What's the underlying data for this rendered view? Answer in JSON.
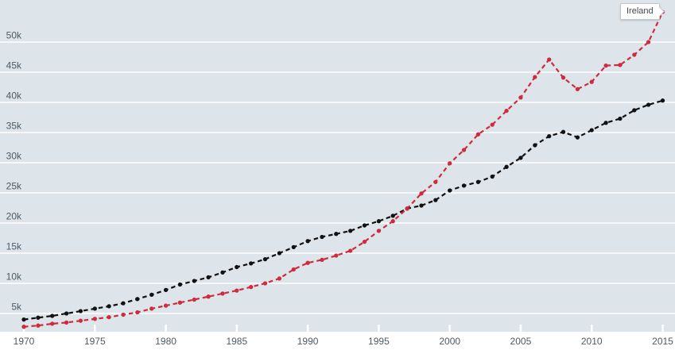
{
  "colors": {
    "page_background": "#ffffff",
    "plot_background": "#dde5eb",
    "gridline": "#ffffff",
    "axis_text": "#4c5a64",
    "series_black": "#111111",
    "series_red": "#ce2b3d",
    "tooltip_border": "#c2c9ce",
    "tooltip_text": "#3c4a53"
  },
  "tooltip": {
    "label": "Ireland"
  },
  "chart_data": {
    "type": "line",
    "title": "",
    "xlabel": "",
    "ylabel": "",
    "grid": true,
    "line_style": "dashed-with-dots",
    "xlim": [
      1968.3,
      2015.9
    ],
    "ylim": [
      2000,
      57000
    ],
    "x": [
      1970,
      1971,
      1972,
      1973,
      1974,
      1975,
      1976,
      1977,
      1978,
      1979,
      1980,
      1981,
      1982,
      1983,
      1984,
      1985,
      1986,
      1987,
      1988,
      1989,
      1990,
      1991,
      1992,
      1993,
      1994,
      1995,
      1996,
      1997,
      1998,
      1999,
      2000,
      2001,
      2002,
      2003,
      2004,
      2005,
      2006,
      2007,
      2008,
      2009,
      2010,
      2011,
      2012,
      2013,
      2014,
      2015
    ],
    "x_ticks": {
      "values": [
        1970,
        1975,
        1980,
        1985,
        1990,
        1995,
        2000,
        2005,
        2010,
        2015
      ],
      "labels": [
        "1970",
        "1975",
        "1980",
        "1985",
        "1990",
        "1995",
        "2000",
        "2005",
        "2010",
        "2015"
      ]
    },
    "y_ticks": {
      "values": [
        5000,
        10000,
        15000,
        20000,
        25000,
        30000,
        35000,
        40000,
        45000,
        50000
      ],
      "labels": [
        "5k",
        "10k",
        "15k",
        "20k",
        "25k",
        "30k",
        "35k",
        "40k",
        "45k",
        "50k"
      ]
    },
    "series": [
      {
        "name": "",
        "color": "#111111",
        "values": [
          4000,
          4300,
          4600,
          5000,
          5400,
          5800,
          6200,
          6700,
          7400,
          8100,
          8900,
          9800,
          10400,
          11000,
          11800,
          12700,
          13300,
          14000,
          15000,
          16000,
          17000,
          17700,
          18200,
          18700,
          19600,
          20300,
          21200,
          22400,
          22900,
          23800,
          25400,
          26200,
          26800,
          27700,
          29300,
          30800,
          32900,
          34400,
          35100,
          34200,
          35400,
          36600,
          37300,
          38700,
          39600,
          40300
        ]
      },
      {
        "name": "Ireland",
        "color": "#ce2b3d",
        "values": [
          2800,
          3000,
          3300,
          3500,
          3800,
          4100,
          4400,
          4800,
          5200,
          5800,
          6300,
          6800,
          7300,
          7800,
          8300,
          8800,
          9400,
          10000,
          10800,
          12300,
          13400,
          13900,
          14600,
          15400,
          16900,
          18700,
          20300,
          22400,
          24900,
          26800,
          29900,
          32100,
          34700,
          36300,
          38600,
          40800,
          44200,
          47100,
          44100,
          42200,
          43400,
          46100,
          46200,
          47900,
          50000,
          55000
        ]
      }
    ]
  }
}
